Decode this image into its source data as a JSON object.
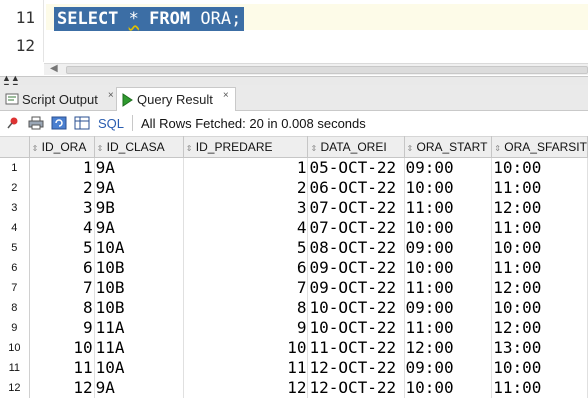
{
  "editor": {
    "lines": [
      {
        "number": "11",
        "text": "SELECT * FROM ORA;"
      },
      {
        "number": "12",
        "text": ""
      }
    ],
    "sql_parts": {
      "select": "SELECT",
      "star": "*",
      "from": "FROM",
      "rest": "ORA;"
    }
  },
  "tabs": [
    {
      "label": "Script Output",
      "close": "×"
    },
    {
      "label": "Query Result",
      "close": "×"
    }
  ],
  "toolbar": {
    "sql_label": "SQL",
    "status": "All Rows Fetched: 20 in 0.008 seconds"
  },
  "colors": {
    "selection": "#3c6ea5",
    "sql_link": "#2a5db0"
  },
  "grid": {
    "columns": [
      "ID_ORA",
      "ID_CLASA",
      "ID_PREDARE",
      "DATA_OREI",
      "ORA_START",
      "ORA_SFARSIT"
    ],
    "rows": [
      [
        "1",
        "1",
        "9A",
        "1",
        "05-OCT-22",
        "09:00",
        "10:00"
      ],
      [
        "2",
        "2",
        "9A",
        "2",
        "06-OCT-22",
        "10:00",
        "11:00"
      ],
      [
        "3",
        "3",
        "9B",
        "3",
        "07-OCT-22",
        "11:00",
        "12:00"
      ],
      [
        "4",
        "4",
        "9A",
        "4",
        "07-OCT-22",
        "10:00",
        "11:00"
      ],
      [
        "5",
        "5",
        "10A",
        "5",
        "08-OCT-22",
        "09:00",
        "10:00"
      ],
      [
        "6",
        "6",
        "10B",
        "6",
        "09-OCT-22",
        "10:00",
        "11:00"
      ],
      [
        "7",
        "7",
        "10B",
        "7",
        "09-OCT-22",
        "11:00",
        "12:00"
      ],
      [
        "8",
        "8",
        "10B",
        "8",
        "10-OCT-22",
        "09:00",
        "10:00"
      ],
      [
        "9",
        "9",
        "11A",
        "9",
        "10-OCT-22",
        "11:00",
        "12:00"
      ],
      [
        "10",
        "10",
        "11A",
        "10",
        "11-OCT-22",
        "12:00",
        "13:00"
      ],
      [
        "11",
        "11",
        "10A",
        "11",
        "12-OCT-22",
        "09:00",
        "10:00"
      ],
      [
        "12",
        "12",
        "9A",
        "12",
        "12-OCT-22",
        "10:00",
        "11:00"
      ]
    ]
  }
}
